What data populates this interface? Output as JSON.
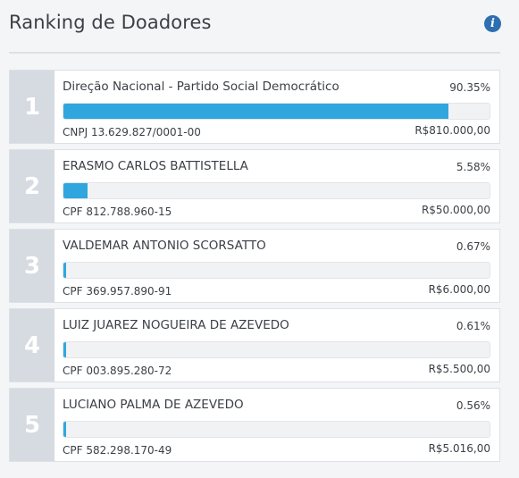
{
  "header": {
    "title": "Ranking de Doadores",
    "info_icon": "info-circle-icon"
  },
  "colors": {
    "bar_fill": "#2fa7de",
    "rank_bg": "#d6dbe1",
    "info_icon": "#2d6fb0"
  },
  "donors": [
    {
      "rank": "1",
      "name": "Direção Nacional - Partido Social Democrático",
      "percent": "90.35%",
      "percent_value": 90.35,
      "document": "CNPJ 13.629.827/0001-00",
      "amount": "R$810.000,00"
    },
    {
      "rank": "2",
      "name": "ERASMO CARLOS BATTISTELLA",
      "percent": "5.58%",
      "percent_value": 5.58,
      "document": "CPF 812.788.960-15",
      "amount": "R$50.000,00"
    },
    {
      "rank": "3",
      "name": "VALDEMAR ANTONIO SCORSATTO",
      "percent": "0.67%",
      "percent_value": 0.67,
      "document": "CPF 369.957.890-91",
      "amount": "R$6.000,00"
    },
    {
      "rank": "4",
      "name": "LUIZ JUAREZ NOGUEIRA DE AZEVEDO",
      "percent": "0.61%",
      "percent_value": 0.61,
      "document": "CPF 003.895.280-72",
      "amount": "R$5.500,00"
    },
    {
      "rank": "5",
      "name": "LUCIANO PALMA DE AZEVEDO",
      "percent": "0.56%",
      "percent_value": 0.56,
      "document": "CPF 582.298.170-49",
      "amount": "R$5.016,00"
    }
  ]
}
